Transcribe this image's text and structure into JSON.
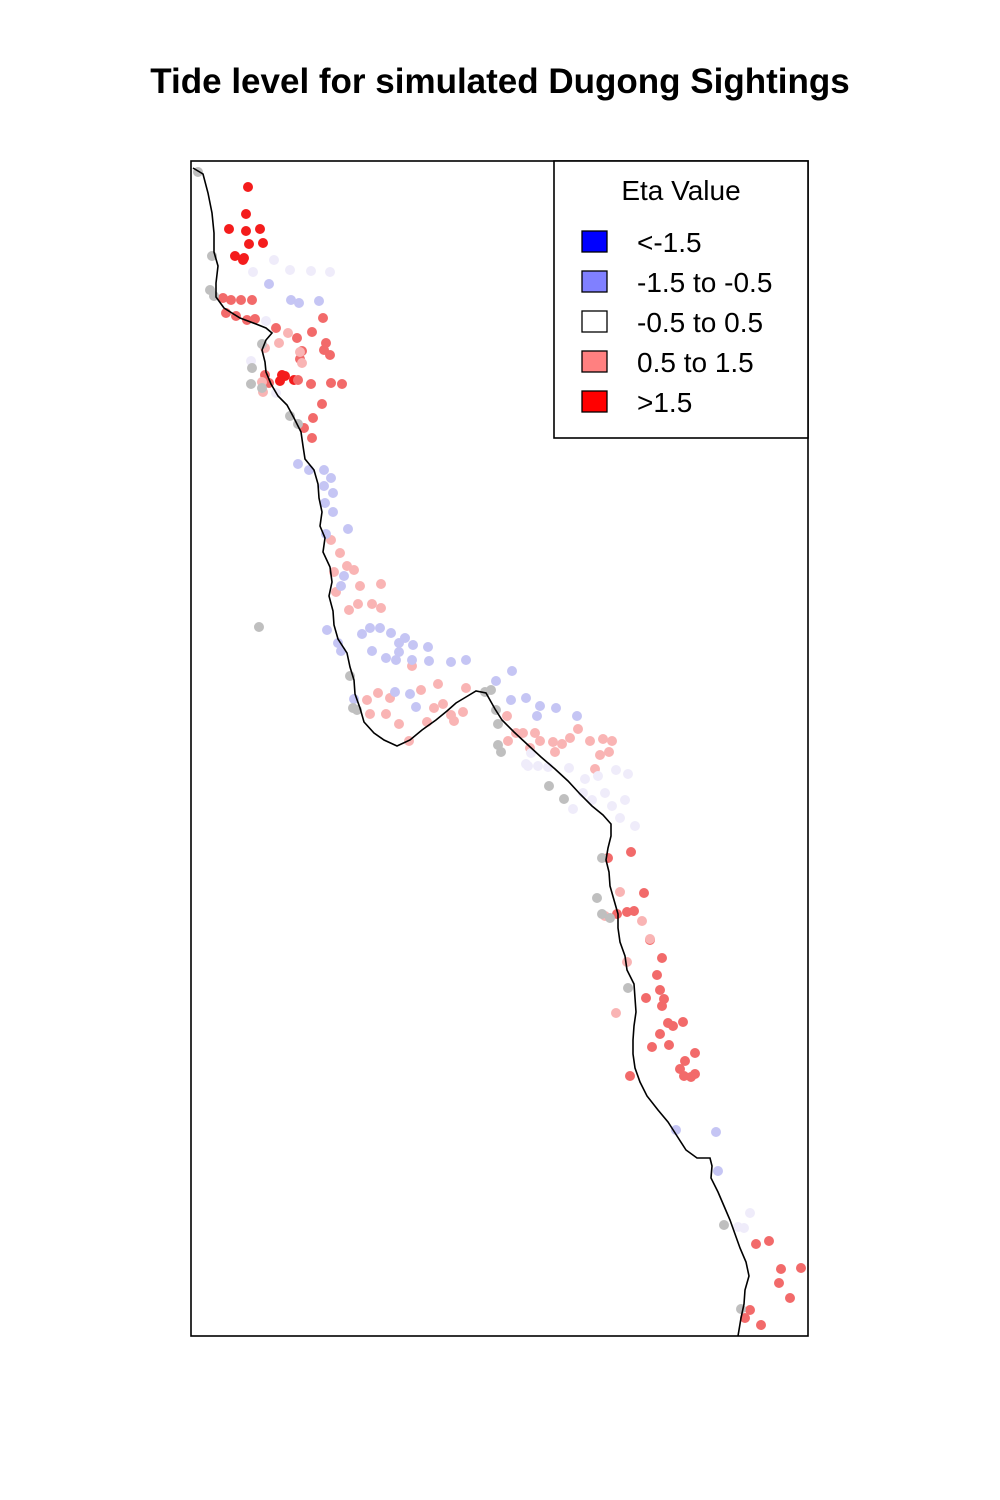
{
  "title": "Tide level for simulated Dugong Sightings",
  "legend": {
    "title": "Eta Value",
    "items": [
      {
        "label": "<-1.5",
        "color": "#0000ff"
      },
      {
        "label": "-1.5 to -0.5",
        "color": "#8080ff"
      },
      {
        "label": "-0.5 to 0.5",
        "color": "#ffffff"
      },
      {
        "label": "0.5 to 1.5",
        "color": "#ff8080"
      },
      {
        "label": ">1.5",
        "color": "#ff0000"
      }
    ]
  },
  "colors": {
    "no_data": "#bfbfbf",
    "coastline": "#000000",
    "frame": "#000000"
  },
  "chart_data": {
    "type": "scatter",
    "title": "Tide level for simulated Dugong Sightings",
    "legend_position": "top-right",
    "series": [
      {
        "category": "strong-red",
        "values": [
          [
            248,
            187
          ],
          [
            246,
            214
          ],
          [
            260,
            229
          ],
          [
            246,
            231
          ],
          [
            229,
            229
          ],
          [
            263,
            243
          ],
          [
            249,
            244
          ],
          [
            235,
            256
          ],
          [
            243,
            260
          ],
          [
            244,
            258
          ],
          [
            282,
            375
          ],
          [
            294,
            380
          ],
          [
            285,
            376
          ],
          [
            280,
            381
          ]
        ]
      },
      {
        "category": "red",
        "values": [
          [
            223,
            298
          ],
          [
            231,
            300
          ],
          [
            241,
            300
          ],
          [
            252,
            300
          ],
          [
            226,
            313
          ],
          [
            236,
            316
          ],
          [
            247,
            320
          ],
          [
            255,
            319
          ],
          [
            276,
            328
          ],
          [
            323,
            318
          ],
          [
            312,
            332
          ],
          [
            297,
            338
          ],
          [
            326,
            343
          ],
          [
            302,
            351
          ],
          [
            324,
            350
          ],
          [
            330,
            355
          ],
          [
            300,
            359
          ],
          [
            265,
            375
          ],
          [
            269,
            383
          ],
          [
            311,
            384
          ],
          [
            342,
            384
          ],
          [
            331,
            383
          ],
          [
            322,
            404
          ],
          [
            313,
            418
          ],
          [
            304,
            428
          ],
          [
            312,
            438
          ],
          [
            298,
            380
          ],
          [
            608,
            858
          ],
          [
            631,
            852
          ],
          [
            644,
            893
          ],
          [
            634,
            911
          ],
          [
            617,
            914
          ],
          [
            627,
            912
          ],
          [
            650,
            940
          ],
          [
            662,
            958
          ],
          [
            657,
            975
          ],
          [
            660,
            990
          ],
          [
            664,
            999
          ],
          [
            646,
            998
          ],
          [
            662,
            1006
          ],
          [
            668,
            1023
          ],
          [
            683,
            1022
          ],
          [
            660,
            1034
          ],
          [
            673,
            1026
          ],
          [
            652,
            1047
          ],
          [
            669,
            1045
          ],
          [
            695,
            1053
          ],
          [
            685,
            1061
          ],
          [
            680,
            1069
          ],
          [
            695,
            1074
          ],
          [
            684,
            1076
          ],
          [
            691,
            1077
          ],
          [
            630,
            1076
          ],
          [
            756,
            1244
          ],
          [
            769,
            1241
          ],
          [
            781,
            1269
          ],
          [
            779,
            1283
          ],
          [
            801,
            1268
          ],
          [
            790,
            1298
          ],
          [
            750,
            1310
          ],
          [
            761,
            1325
          ],
          [
            745,
            1318
          ]
        ]
      },
      {
        "category": "light-red",
        "values": [
          [
            279,
            343
          ],
          [
            265,
            348
          ],
          [
            288,
            333
          ],
          [
            300,
            352
          ],
          [
            302,
            363
          ],
          [
            262,
            382
          ],
          [
            263,
            392
          ],
          [
            331,
            540
          ],
          [
            340,
            553
          ],
          [
            347,
            566
          ],
          [
            354,
            570
          ],
          [
            334,
            572
          ],
          [
            360,
            586
          ],
          [
            381,
            584
          ],
          [
            336,
            592
          ],
          [
            349,
            610
          ],
          [
            358,
            604
          ],
          [
            372,
            604
          ],
          [
            381,
            608
          ],
          [
            412,
            666
          ],
          [
            421,
            690
          ],
          [
            438,
            684
          ],
          [
            466,
            688
          ],
          [
            378,
            693
          ],
          [
            367,
            700
          ],
          [
            390,
            698
          ],
          [
            370,
            714
          ],
          [
            386,
            714
          ],
          [
            399,
            724
          ],
          [
            409,
            741
          ],
          [
            427,
            722
          ],
          [
            434,
            708
          ],
          [
            443,
            704
          ],
          [
            451,
            715
          ],
          [
            463,
            712
          ],
          [
            454,
            721
          ],
          [
            516,
            733
          ],
          [
            523,
            733
          ],
          [
            535,
            733
          ],
          [
            540,
            741
          ],
          [
            553,
            742
          ],
          [
            562,
            744
          ],
          [
            570,
            738
          ],
          [
            578,
            729
          ],
          [
            590,
            741
          ],
          [
            603,
            739
          ],
          [
            612,
            741
          ],
          [
            609,
            752
          ],
          [
            600,
            755
          ],
          [
            595,
            769
          ],
          [
            555,
            752
          ],
          [
            530,
            748
          ],
          [
            508,
            741
          ],
          [
            620,
            892
          ],
          [
            627,
            962
          ],
          [
            605,
            916
          ],
          [
            616,
            1013
          ],
          [
            642,
            921
          ],
          [
            650,
            939
          ],
          [
            507,
            716
          ]
        ]
      },
      {
        "category": "white",
        "values": [
          [
            253,
            272
          ],
          [
            274,
            260
          ],
          [
            290,
            270
          ],
          [
            311,
            271
          ],
          [
            330,
            272
          ],
          [
            266,
            321
          ],
          [
            251,
            361
          ],
          [
            276,
            393
          ],
          [
            526,
            764
          ],
          [
            538,
            766
          ],
          [
            548,
            767
          ],
          [
            569,
            768
          ],
          [
            585,
            779
          ],
          [
            598,
            776
          ],
          [
            616,
            770
          ],
          [
            628,
            774
          ],
          [
            625,
            800
          ],
          [
            612,
            806
          ],
          [
            620,
            818
          ],
          [
            635,
            826
          ],
          [
            583,
            793
          ],
          [
            573,
            809
          ],
          [
            592,
            800
          ],
          [
            605,
            793
          ],
          [
            531,
            753
          ],
          [
            528,
            766
          ],
          [
            750,
            1213
          ],
          [
            738,
            1227
          ],
          [
            744,
            1228
          ]
        ]
      },
      {
        "category": "light-blue",
        "values": [
          [
            269,
            284
          ],
          [
            291,
            300
          ],
          [
            299,
            303
          ],
          [
            319,
            301
          ],
          [
            298,
            464
          ],
          [
            309,
            470
          ],
          [
            324,
            470
          ],
          [
            331,
            478
          ],
          [
            324,
            486
          ],
          [
            333,
            493
          ],
          [
            325,
            503
          ],
          [
            333,
            512
          ],
          [
            326,
            534
          ],
          [
            348,
            529
          ],
          [
            344,
            576
          ],
          [
            341,
            586
          ],
          [
            327,
            630
          ],
          [
            338,
            643
          ],
          [
            341,
            651
          ],
          [
            370,
            628
          ],
          [
            380,
            628
          ],
          [
            362,
            634
          ],
          [
            391,
            633
          ],
          [
            405,
            638
          ],
          [
            399,
            643
          ],
          [
            413,
            645
          ],
          [
            428,
            647
          ],
          [
            399,
            652
          ],
          [
            372,
            651
          ],
          [
            386,
            658
          ],
          [
            396,
            660
          ],
          [
            412,
            660
          ],
          [
            429,
            661
          ],
          [
            451,
            662
          ],
          [
            466,
            660
          ],
          [
            496,
            681
          ],
          [
            512,
            671
          ],
          [
            511,
            700
          ],
          [
            526,
            698
          ],
          [
            540,
            706
          ],
          [
            537,
            716
          ],
          [
            556,
            708
          ],
          [
            577,
            716
          ],
          [
            416,
            707
          ],
          [
            354,
            699
          ],
          [
            395,
            692
          ],
          [
            410,
            694
          ],
          [
            676,
            1130
          ],
          [
            716,
            1132
          ],
          [
            718,
            1171
          ]
        ]
      },
      {
        "category": "no-data",
        "values": [
          [
            198,
            172
          ],
          [
            212,
            256
          ],
          [
            210,
            290
          ],
          [
            214,
            296
          ],
          [
            262,
            344
          ],
          [
            252,
            368
          ],
          [
            251,
            384
          ],
          [
            262,
            388
          ],
          [
            290,
            416
          ],
          [
            298,
            424
          ],
          [
            259,
            627
          ],
          [
            350,
            676
          ],
          [
            353,
            708
          ],
          [
            357,
            710
          ],
          [
            485,
            692
          ],
          [
            491,
            690
          ],
          [
            496,
            710
          ],
          [
            498,
            724
          ],
          [
            498,
            745
          ],
          [
            501,
            752
          ],
          [
            549,
            786
          ],
          [
            564,
            799
          ],
          [
            602,
            858
          ],
          [
            597,
            898
          ],
          [
            602,
            914
          ],
          [
            610,
            918
          ],
          [
            628,
            988
          ],
          [
            724,
            1225
          ],
          [
            741,
            1309
          ]
        ]
      }
    ]
  }
}
